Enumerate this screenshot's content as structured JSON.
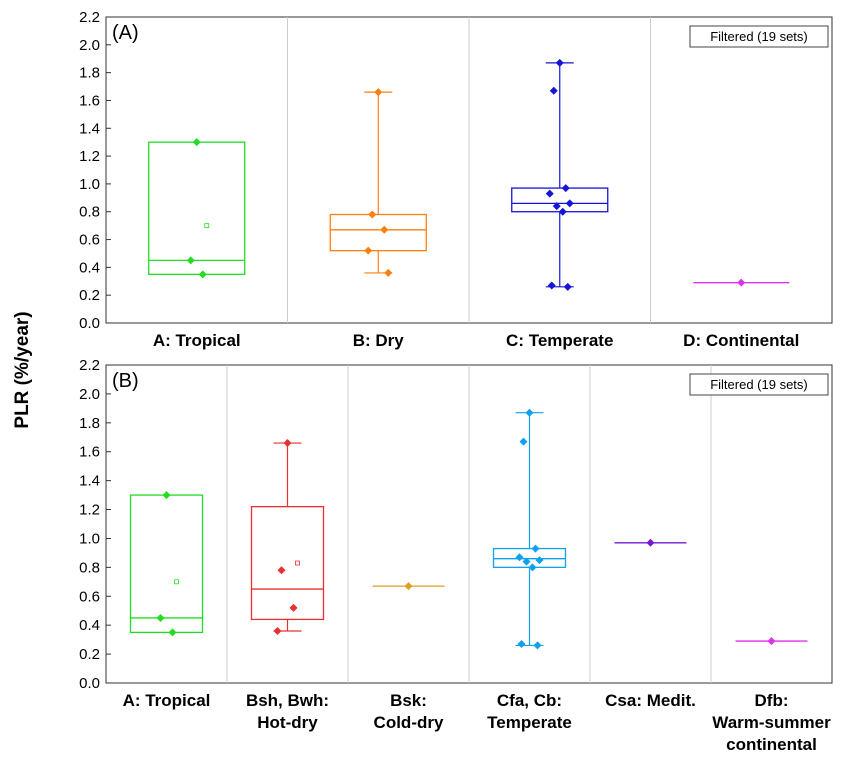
{
  "ylabel": "PLR (%/year)",
  "chart_data": [
    {
      "type": "box",
      "panel_label": "(A)",
      "filter_badge": "Filtered (19 sets)",
      "ylabel": "PLR (%/year)",
      "ylim": [
        0,
        2.2
      ],
      "yticks": [
        "0.0",
        "0.2",
        "0.4",
        "0.6",
        "0.8",
        "1.0",
        "1.2",
        "1.4",
        "1.6",
        "1.8",
        "2.0",
        "2.2"
      ],
      "grid": "vertical separators between categories",
      "categories": [
        {
          "label": [
            "A: Tropical"
          ],
          "color": "#22dd22",
          "box": {
            "q1": 0.35,
            "median": 0.45,
            "q3": 1.3,
            "mean": 0.7
          },
          "points": [
            1.3,
            0.45,
            0.35
          ]
        },
        {
          "label": [
            "B: Dry"
          ],
          "color": "#ff7f0e",
          "box": {
            "q1": 0.52,
            "median": 0.67,
            "q3": 0.78,
            "whisker_low": 0.36,
            "whisker_high": 1.66
          },
          "points": [
            1.66,
            0.78,
            0.67,
            0.52,
            0.36
          ]
        },
        {
          "label": [
            "C: Temperate"
          ],
          "color": "#1515d9",
          "box": {
            "q1": 0.8,
            "median": 0.86,
            "q3": 0.97,
            "whisker_low": 0.26,
            "whisker_high": 1.87
          },
          "points": [
            1.87,
            1.67,
            0.97,
            0.93,
            0.86,
            0.84,
            0.8,
            0.27,
            0.26
          ]
        },
        {
          "label": [
            "D: Continental"
          ],
          "color": "#dd33ee",
          "box": {
            "q1": 0.29,
            "median": 0.29,
            "q3": 0.29
          },
          "points": [
            0.29
          ]
        }
      ]
    },
    {
      "type": "box",
      "panel_label": "(B)",
      "filter_badge": "Filtered (19 sets)",
      "ylabel": "PLR (%/year)",
      "ylim": [
        0,
        2.2
      ],
      "yticks": [
        "0.0",
        "0.2",
        "0.4",
        "0.6",
        "0.8",
        "1.0",
        "1.2",
        "1.4",
        "1.6",
        "1.8",
        "2.0",
        "2.2"
      ],
      "grid": "vertical separators between categories",
      "categories": [
        {
          "label": [
            "A: Tropical"
          ],
          "color": "#22dd22",
          "box": {
            "q1": 0.35,
            "median": 0.45,
            "q3": 1.3,
            "mean": 0.7
          },
          "points": [
            1.3,
            0.45,
            0.35
          ]
        },
        {
          "label": [
            "Bsh, Bwh:",
            "Hot-dry"
          ],
          "color": "#e83030",
          "box": {
            "q1": 0.44,
            "median": 0.65,
            "q3": 1.22,
            "whisker_low": 0.36,
            "whisker_high": 1.66,
            "mean": 0.83
          },
          "points": [
            1.66,
            0.78,
            0.52,
            0.36
          ]
        },
        {
          "label": [
            "Bsk:",
            "Cold-dry"
          ],
          "color": "#e0a020",
          "box": {
            "q1": 0.67,
            "median": 0.67,
            "q3": 0.67
          },
          "points": [
            0.67
          ]
        },
        {
          "label": [
            "Cfa, Cb:",
            "Temperate"
          ],
          "color": "#10a0ee",
          "box": {
            "q1": 0.8,
            "median": 0.86,
            "q3": 0.93,
            "whisker_low": 0.26,
            "whisker_high": 1.87
          },
          "points": [
            1.87,
            1.67,
            0.93,
            0.87,
            0.85,
            0.84,
            0.8,
            0.27,
            0.26
          ]
        },
        {
          "label": [
            "Csa: Medit."
          ],
          "color": "#7a18d8",
          "box": {
            "q1": 0.97,
            "median": 0.97,
            "q3": 0.97
          },
          "points": [
            0.97
          ]
        },
        {
          "label": [
            "Dfb:",
            "Warm-summer",
            "continental"
          ],
          "color": "#dd33ee",
          "box": {
            "q1": 0.29,
            "median": 0.29,
            "q3": 0.29
          },
          "points": [
            0.29
          ]
        }
      ]
    }
  ]
}
